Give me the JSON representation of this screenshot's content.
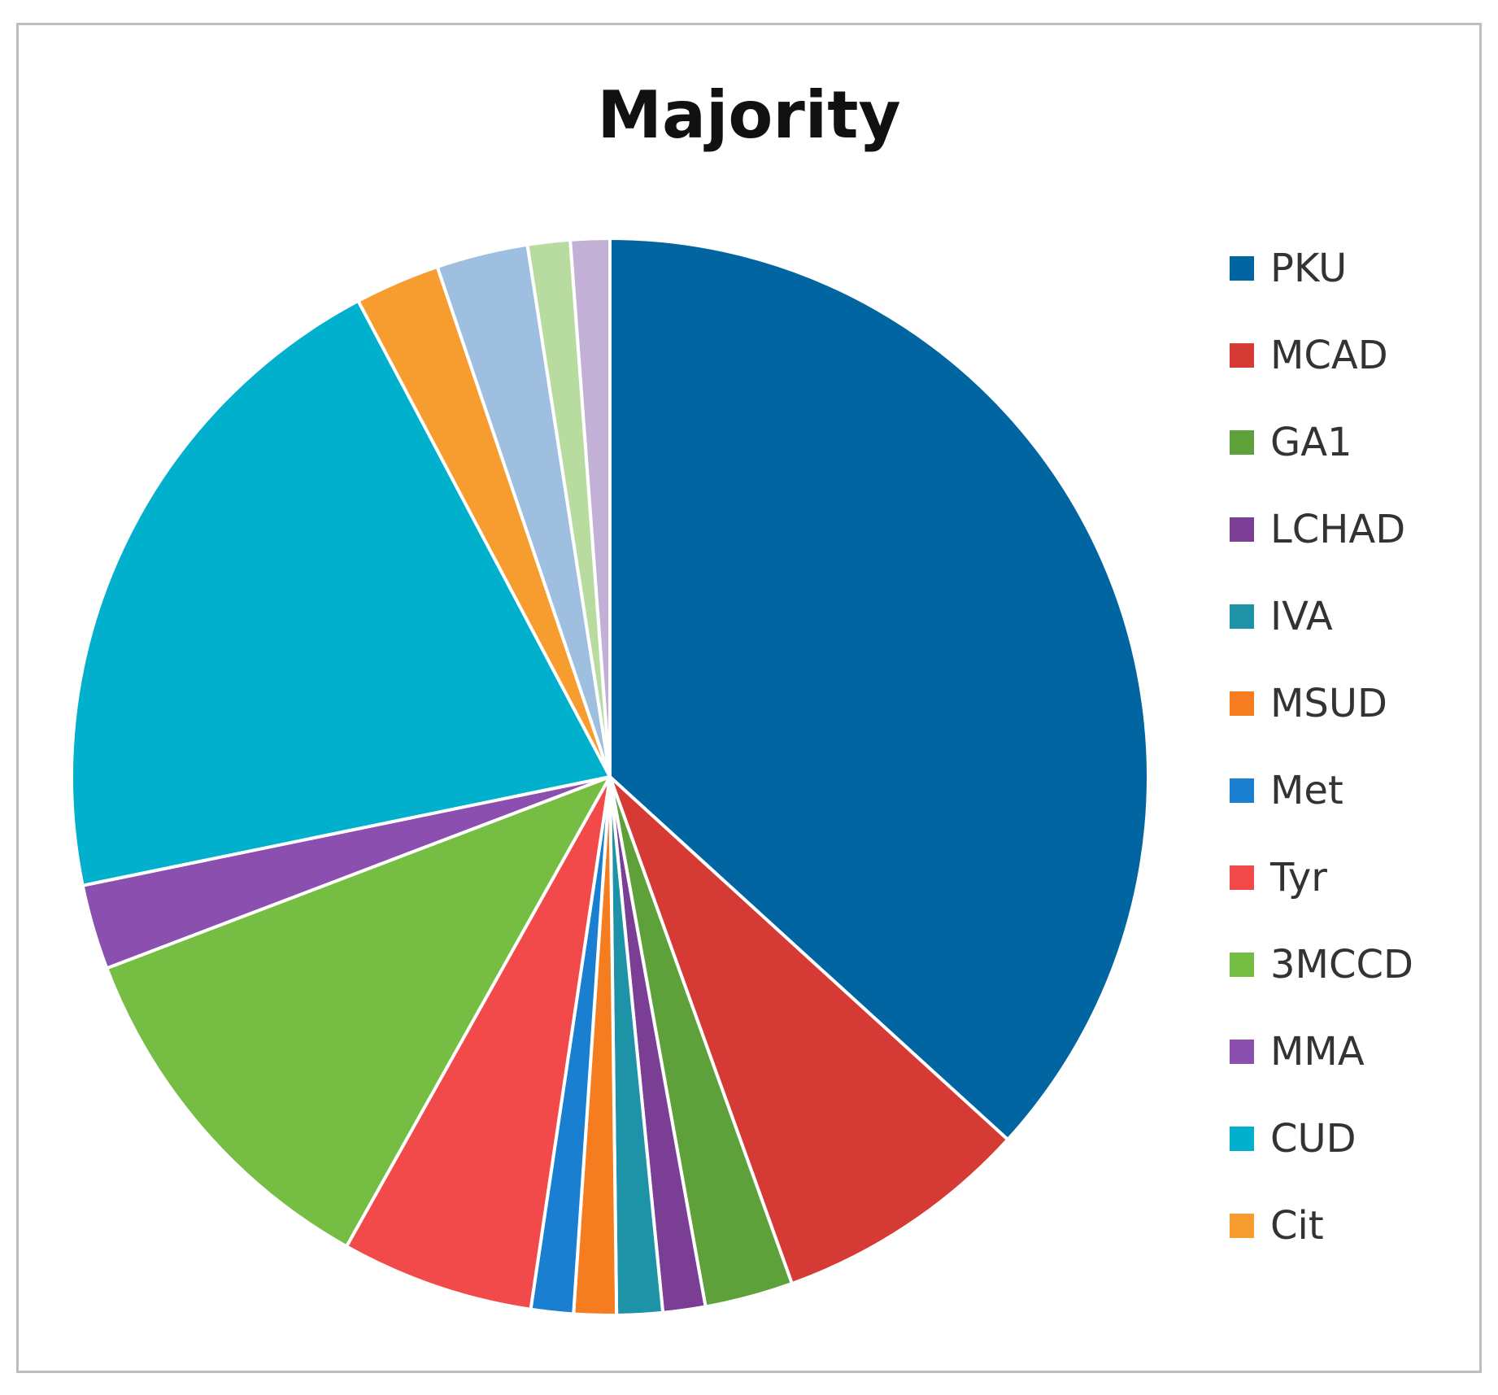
{
  "chart_data": {
    "type": "pie",
    "title": "Majority",
    "legend_position": "right",
    "slices": [
      {
        "label": "PKU",
        "value": 37.5,
        "color": "#0065a0"
      },
      {
        "label": "MCAD",
        "value": 7.9,
        "color": "#d63a35"
      },
      {
        "label": "GA1",
        "value": 2.7,
        "color": "#5ea03a"
      },
      {
        "label": "LCHAD",
        "value": 1.3,
        "color": "#7a3f94"
      },
      {
        "label": "IVA",
        "value": 1.4,
        "color": "#1e93a8"
      },
      {
        "label": "MSUD",
        "value": 1.3,
        "color": "#f57c1f"
      },
      {
        "label": "Met",
        "value": 1.3,
        "color": "#1a7fd1"
      },
      {
        "label": "Tyr",
        "value": 5.9,
        "color": "#f24a4a"
      },
      {
        "label": "3MCCD",
        "value": 11.3,
        "color": "#76bd43"
      },
      {
        "label": "MMA",
        "value": 2.6,
        "color": "#8b4fb0"
      },
      {
        "label": "CUD",
        "value": 20.9,
        "color": "#00b0cc"
      },
      {
        "label": "Cit",
        "value": 2.6,
        "color": "#f79c2f"
      },
      {
        "label": "",
        "value": 2.8,
        "color": "#9fbfe0"
      },
      {
        "label": "",
        "value": 1.3,
        "color": "#b8dca0"
      },
      {
        "label": "",
        "value": 1.2,
        "color": "#c3b0d6"
      }
    ]
  }
}
